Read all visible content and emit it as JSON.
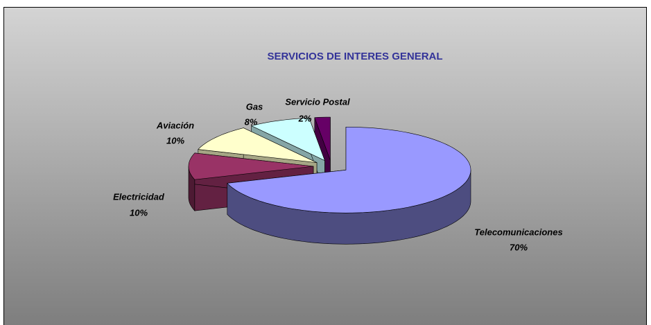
{
  "chart_data": {
    "type": "pie3d",
    "title": "SERVICIOS DE INTERES GENERAL",
    "categories": [
      "Telecomunicaciones",
      "Electricidad",
      "Aviación",
      "Gas",
      "Servicio Postal"
    ],
    "values": [
      70,
      10,
      10,
      8,
      2
    ],
    "value_labels": [
      "70%",
      "10%",
      "10%",
      "8%",
      "2%"
    ],
    "colors": [
      "#9999ff",
      "#993366",
      "#ffffcc",
      "#ccffff",
      "#660066"
    ]
  }
}
